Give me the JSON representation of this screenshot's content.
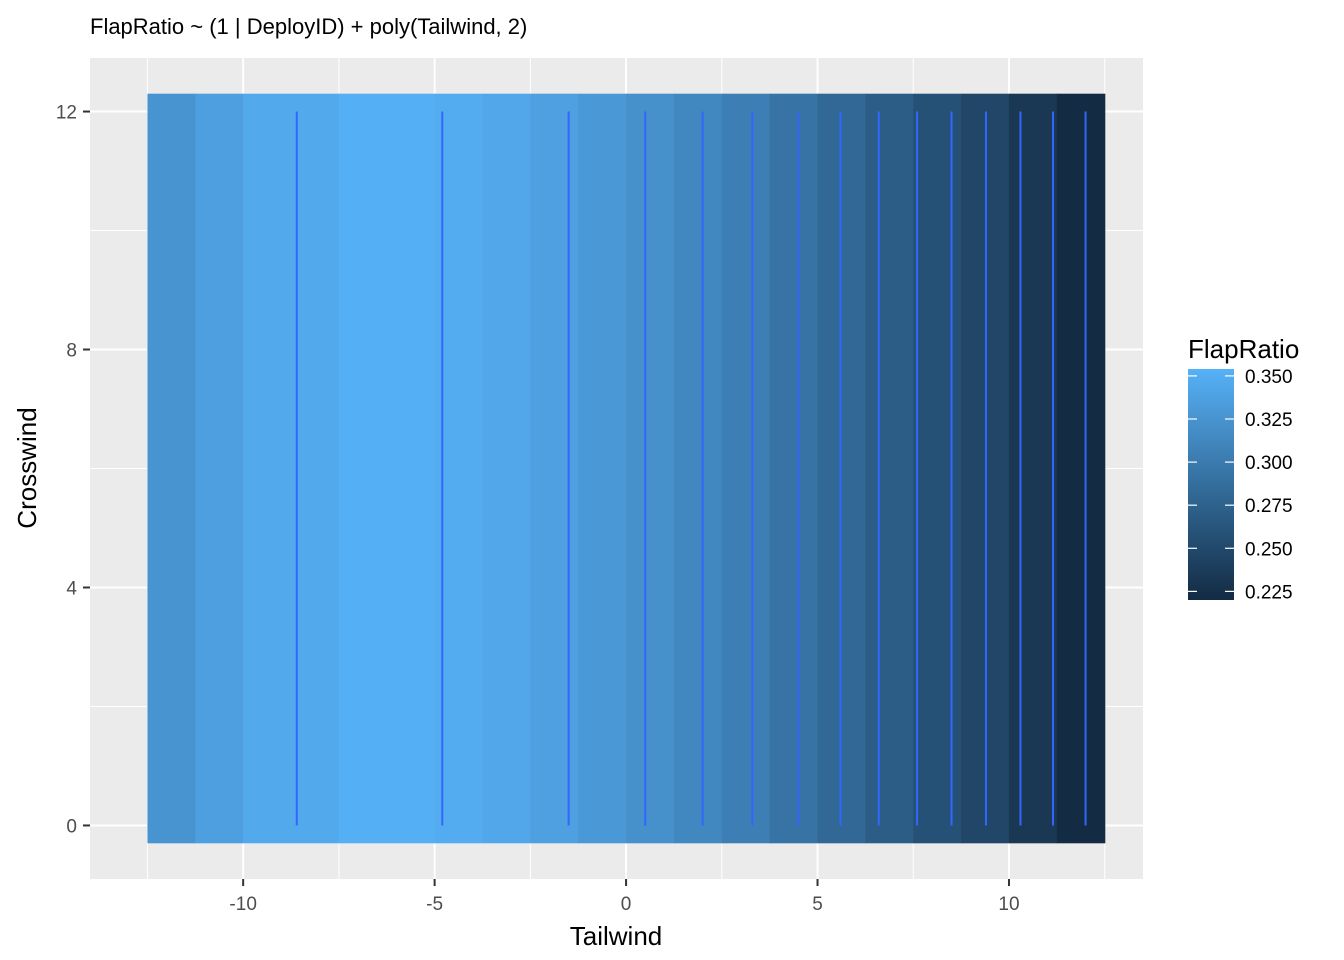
{
  "chart_data": {
    "type": "heatmap",
    "title": "FlapRatio ~ (1 | DeployID) + poly(Tailwind, 2)",
    "xlabel": "Tailwind",
    "ylabel": "Crosswind",
    "xlim": [
      -14,
      13.5
    ],
    "ylim": [
      -0.9,
      12.9
    ],
    "x_ticks": [
      -10,
      -5,
      0,
      5,
      10
    ],
    "y_ticks": [
      0,
      4,
      8,
      12
    ],
    "tile_y_range": [
      -0.3,
      12.3
    ],
    "tiles": [
      {
        "x0": -12.5,
        "x1": -11.25,
        "value": 0.325
      },
      {
        "x0": -11.25,
        "x1": -10.0,
        "value": 0.336
      },
      {
        "x0": -10.0,
        "x1": -7.5,
        "value": 0.346
      },
      {
        "x0": -7.5,
        "x1": -5.0,
        "value": 0.352
      },
      {
        "x0": -5.0,
        "x1": -3.75,
        "value": 0.349
      },
      {
        "x0": -3.75,
        "x1": -2.5,
        "value": 0.344
      },
      {
        "x0": -2.5,
        "x1": -1.25,
        "value": 0.337
      },
      {
        "x0": -1.25,
        "x1": 0.0,
        "value": 0.329
      },
      {
        "x0": 0.0,
        "x1": 1.25,
        "value": 0.321
      },
      {
        "x0": 1.25,
        "x1": 2.5,
        "value": 0.313
      },
      {
        "x0": 2.5,
        "x1": 3.75,
        "value": 0.304
      },
      {
        "x0": 3.75,
        "x1": 5.0,
        "value": 0.292
      },
      {
        "x0": 5.0,
        "x1": 6.25,
        "value": 0.281
      },
      {
        "x0": 6.25,
        "x1": 7.5,
        "value": 0.27
      },
      {
        "x0": 7.5,
        "x1": 8.75,
        "value": 0.258
      },
      {
        "x0": 8.75,
        "x1": 10.0,
        "value": 0.247
      },
      {
        "x0": 10.0,
        "x1": 11.25,
        "value": 0.233
      },
      {
        "x0": 11.25,
        "x1": 12.5,
        "value": 0.22
      }
    ],
    "contour_x": [
      -8.6,
      -4.8,
      -1.5,
      0.5,
      2.0,
      3.3,
      4.5,
      5.6,
      6.6,
      7.6,
      8.5,
      9.4,
      10.3,
      11.15,
      12.0
    ],
    "contour_y_range": [
      0,
      12
    ],
    "contour_color": "#3366ff",
    "legend": {
      "title": "FlapRatio",
      "position": "right",
      "range": [
        0.22,
        0.354
      ],
      "breaks": [
        0.35,
        0.325,
        0.3,
        0.275,
        0.25,
        0.225
      ],
      "labels": [
        "0.350",
        "0.325",
        "0.300",
        "0.275",
        "0.250",
        "0.225"
      ],
      "low_color": "#132b43",
      "high_color": "#56b1f7"
    },
    "panel_background": "#ebebeb",
    "grid": true
  }
}
